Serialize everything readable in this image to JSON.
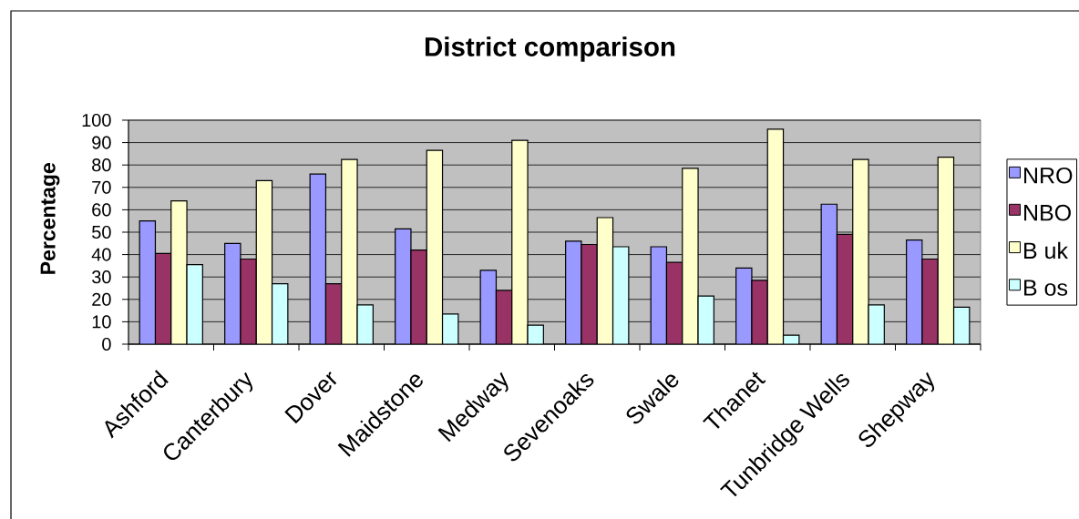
{
  "chart_data": {
    "type": "bar",
    "title": "District comparison",
    "ylabel": "Percentage",
    "categories": [
      "Ashford",
      "Canterbury",
      "Dover",
      "Maidstone",
      "Medway",
      "Sevenoaks",
      "Swale",
      "Thanet",
      "Tunbridge Wells",
      "Shepway"
    ],
    "series": [
      {
        "name": "NRO",
        "color": "#9999ff",
        "values": [
          55,
          45,
          76,
          51.5,
          33,
          46,
          43.5,
          34,
          62.5,
          46.5
        ]
      },
      {
        "name": "NBO",
        "color": "#993366",
        "values": [
          40.5,
          38,
          27,
          42,
          24,
          44.5,
          36.5,
          28.5,
          49,
          38
        ]
      },
      {
        "name": "B uk",
        "color": "#ffffcc",
        "values": [
          64,
          73,
          82.5,
          86.5,
          91,
          56.5,
          78.5,
          96,
          82.5,
          83.5
        ]
      },
      {
        "name": "B os",
        "color": "#ccffff",
        "values": [
          35.5,
          27,
          17.5,
          13.5,
          8.5,
          43.5,
          21.5,
          4,
          17.5,
          16.5
        ]
      }
    ],
    "ylim": [
      0,
      100
    ],
    "yticks": [
      0,
      10,
      20,
      30,
      40,
      50,
      60,
      70,
      80,
      90,
      100
    ],
    "grid": "y",
    "legend": "right"
  }
}
